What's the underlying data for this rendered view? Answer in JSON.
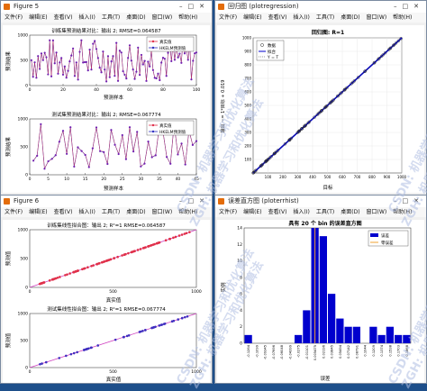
{
  "win1": {
    "title": "Figure 5",
    "menu": [
      "文件(F)",
      "编辑(E)",
      "查看(V)",
      "插入(I)",
      "工具(T)",
      "桌面(D)",
      "窗口(W)",
      "帮助(H)"
    ],
    "chart_data": [
      {
        "type": "line",
        "title": "训练集预测结果对比：输出 2; RMSE=0.064587",
        "xlabel": "预测样本",
        "ylabel": "预测结果",
        "xlim": [
          0,
          100
        ],
        "ylim": [
          0,
          1000
        ],
        "xticks": [
          "0",
          "20",
          "40",
          "60",
          "80",
          "100"
        ],
        "yticks": [
          "0",
          "500",
          "1000"
        ],
        "series": [
          {
            "name": "真实值",
            "color": "#e0304a"
          },
          {
            "name": "HKELM预测值",
            "color": "#3030c0"
          }
        ]
      },
      {
        "type": "line",
        "title": "测试集预测结果对比：输出 2; RMSE=0.067774",
        "xlabel": "预测样本",
        "ylabel": "预测结果",
        "xlim": [
          0,
          45
        ],
        "ylim": [
          0,
          1000
        ],
        "xticks": [
          "0",
          "5",
          "10",
          "15",
          "20",
          "25",
          "30",
          "35",
          "40",
          "45"
        ],
        "yticks": [
          "0",
          "500",
          "1000"
        ],
        "series": [
          {
            "name": "真实值",
            "color": "#e0304a"
          },
          {
            "name": "HKELM预测值",
            "color": "#3030c0"
          }
        ]
      }
    ]
  },
  "win2": {
    "title": "回归图 (plotregression)",
    "menu": [
      "文件(F)",
      "编辑(E)",
      "查看(V)",
      "插入(I)",
      "工具(T)",
      "桌面(D)",
      "窗口(W)",
      "帮助(H)"
    ],
    "chart_data": {
      "type": "scatter",
      "title": "回归图: R=1",
      "xlabel": "目标",
      "ylabel": "输出 ~= 1*目标 + 0.019",
      "xlim": [
        0,
        1000
      ],
      "ylim": [
        0,
        1000
      ],
      "xticks": [
        "100",
        "200",
        "300",
        "400",
        "500",
        "600",
        "700",
        "800",
        "900",
        "1000"
      ],
      "yticks": [
        "100",
        "200",
        "300",
        "400",
        "500",
        "600",
        "700",
        "800",
        "900",
        "1000"
      ],
      "legend": [
        "数据",
        "拟合",
        "Y = T"
      ]
    }
  },
  "win3": {
    "title": "Figure 6",
    "menu": [
      "文件(F)",
      "编辑(E)",
      "查看(V)",
      "插入(I)",
      "工具(T)",
      "桌面(D)",
      "窗口(W)",
      "帮助(H)"
    ],
    "chart_data": [
      {
        "type": "scatter",
        "title": "训练集线性拟合图：输出 2; R²=1  RMSE=0.064587",
        "xlabel": "真实值",
        "ylabel": "预测值",
        "xlim": [
          0,
          1000
        ],
        "ylim": [
          0,
          1000
        ],
        "xticks": [
          "0",
          "500",
          "1000"
        ],
        "yticks": [
          "0",
          "500",
          "1000"
        ]
      },
      {
        "type": "scatter",
        "title": "测试集线性拟合图：输出 2; R²=1  RMSE=0.067774",
        "xlabel": "真实值",
        "ylabel": "预测值",
        "xlim": [
          0,
          1000
        ],
        "ylim": [
          0,
          1000
        ],
        "xticks": [
          "0",
          "500",
          "1000"
        ],
        "yticks": [
          "0",
          "500",
          "1000"
        ]
      }
    ]
  },
  "win4": {
    "title": "误差直方图 (ploterrhist)",
    "menu": [
      "文件(F)",
      "编辑(E)",
      "查看(V)",
      "插入(I)",
      "工具(T)",
      "桌面(D)",
      "窗口(W)",
      "帮助(H)"
    ],
    "chart_data": {
      "type": "bar",
      "title": "具有 20 个 bin 的误差直方图",
      "xlabel": "误差",
      "ylabel": "实例",
      "categories": [
        "-0.1264",
        "-0.1099",
        "-0.09345",
        "-0.07696",
        "-0.06048",
        "-0.04399",
        "-0.0275",
        "-0.01101",
        "0.005475",
        "0.02196",
        "0.03845",
        "0.05494",
        "0.07142",
        "0.08791",
        "0.1044",
        "0.1209",
        "0.1374",
        "0.1538",
        "0.1703",
        "0.1868"
      ],
      "values": [
        1,
        0,
        0,
        0,
        0,
        0,
        1,
        4,
        14,
        13,
        6,
        3,
        2,
        2,
        0,
        2,
        1,
        2,
        1,
        1
      ],
      "ylim": [
        0,
        14
      ],
      "yticks": [
        "0",
        "2",
        "4",
        "6",
        "8",
        "10",
        "12",
        "14"
      ],
      "zero_error_index": 8,
      "legend": [
        "误差",
        "零误差"
      ],
      "colors": {
        "bar": "#0000cd",
        "zero": "#f2a030"
      }
    }
  },
  "watermark": "CSDN: 机器学习和优化算法",
  "watermark2": "ZGH: 机器学习和优化算法"
}
